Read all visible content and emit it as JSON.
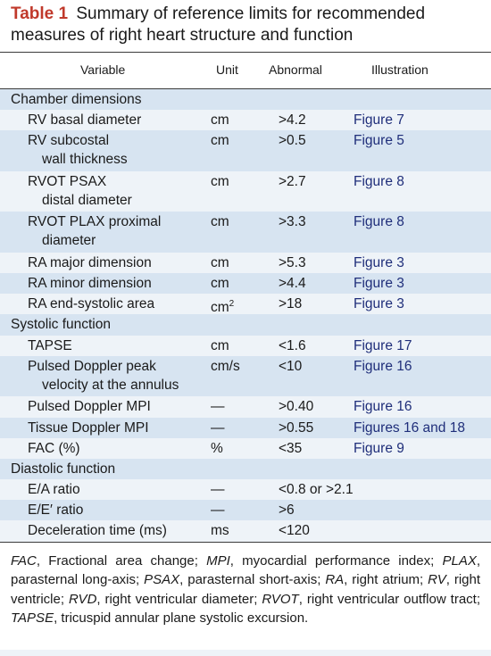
{
  "title": {
    "label": "Table 1",
    "text": "Summary of reference limits for recommended measures of right heart structure and function"
  },
  "columns": {
    "variable": "Variable",
    "unit": "Unit",
    "abnormal": "Abnormal",
    "illustration": "Illustration"
  },
  "rows": [
    {
      "type": "category",
      "text": "Chamber dimensions"
    },
    {
      "type": "data",
      "variable": "RV basal diameter",
      "unit": "cm",
      "abnormal": ">4.2",
      "illustration": "Figure 7"
    },
    {
      "type": "data",
      "variable": "RV subcostal",
      "variable_cont": "wall thickness",
      "unit": "cm",
      "abnormal": ">0.5",
      "illustration": "Figure 5"
    },
    {
      "type": "data",
      "variable": "RVOT PSAX",
      "variable_cont": "distal diameter",
      "unit": "cm",
      "abnormal": ">2.7",
      "illustration": "Figure 8"
    },
    {
      "type": "data",
      "variable": "RVOT PLAX proximal",
      "variable_cont": "diameter",
      "unit": "cm",
      "abnormal": ">3.3",
      "illustration": "Figure 8"
    },
    {
      "type": "data",
      "variable": "RA major dimension",
      "unit": "cm",
      "abnormal": ">5.3",
      "illustration": "Figure 3"
    },
    {
      "type": "data",
      "variable": "RA minor dimension",
      "unit": "cm",
      "abnormal": ">4.4",
      "illustration": "Figure 3"
    },
    {
      "type": "data",
      "variable": "RA end-systolic area",
      "unit": "cm",
      "unit_sup": "2",
      "abnormal": ">18",
      "illustration": "Figure 3"
    },
    {
      "type": "category",
      "text": "Systolic function"
    },
    {
      "type": "data",
      "variable": "TAPSE",
      "unit": "cm",
      "abnormal": "<1.6",
      "illustration": "Figure 17"
    },
    {
      "type": "data",
      "variable": "Pulsed Doppler peak",
      "variable_cont": "velocity at the annulus",
      "unit": "cm/s",
      "abnormal": "<10",
      "illustration": "Figure 16"
    },
    {
      "type": "data",
      "variable": "Pulsed Doppler MPI",
      "unit": "—",
      "abnormal": ">0.40",
      "illustration": "Figure 16"
    },
    {
      "type": "data",
      "variable": "Tissue Doppler MPI",
      "unit": "—",
      "abnormal": ">0.55",
      "illustration": "Figures 16 and 18"
    },
    {
      "type": "data",
      "variable": "FAC (%)",
      "unit": "%",
      "abnormal": "<35",
      "illustration": "Figure 9"
    },
    {
      "type": "category",
      "text": "Diastolic function"
    },
    {
      "type": "data",
      "variable": "E/A ratio",
      "unit": "—",
      "abnormal": "<0.8 or >2.1",
      "illustration": ""
    },
    {
      "type": "data",
      "variable": "E/E′ ratio",
      "unit": "—",
      "abnormal": ">6",
      "illustration": ""
    },
    {
      "type": "data",
      "variable": "Deceleration time (ms)",
      "unit": "ms",
      "abnormal": "<120",
      "illustration": ""
    }
  ],
  "footnote": [
    {
      "abbr": "FAC",
      "def": ", Fractional area change; "
    },
    {
      "abbr": "MPI",
      "def": ", myocardial performance index; "
    },
    {
      "abbr": "PLAX",
      "def": ", parasternal long-axis; "
    },
    {
      "abbr": "PSAX",
      "def": ", parasternal short-axis; "
    },
    {
      "abbr": "RA",
      "def": ", right atrium; "
    },
    {
      "abbr": "RV",
      "def": ", right ventricle; "
    },
    {
      "abbr": "RVD",
      "def": ", right ventricular diameter; "
    },
    {
      "abbr": "RVOT",
      "def": ", right ventricular outflow tract; "
    },
    {
      "abbr": "TAPSE",
      "def": ", tricuspid annular plane systolic excursion."
    }
  ]
}
